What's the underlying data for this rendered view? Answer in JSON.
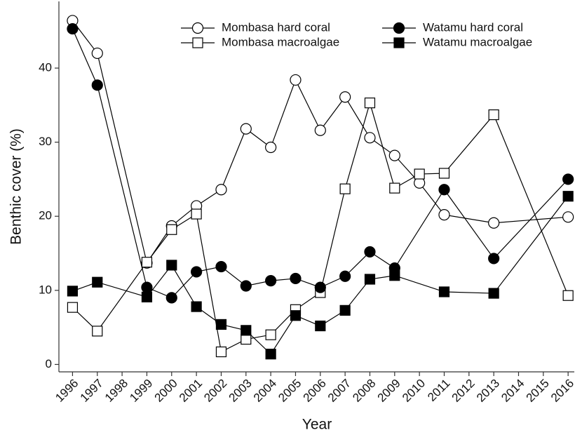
{
  "chart_data": {
    "type": "line",
    "xlabel": "Year",
    "ylabel": "Benthic cover (%)",
    "xlim": [
      1995.45,
      2016.25
    ],
    "ylim": [
      -1,
      49
    ],
    "xticks": [
      1996,
      1997,
      1998,
      1999,
      2000,
      2001,
      2002,
      2003,
      2004,
      2005,
      2006,
      2007,
      2008,
      2009,
      2010,
      2011,
      2012,
      2013,
      2014,
      2015,
      2016
    ],
    "yticks": [
      0,
      10,
      20,
      30,
      40
    ],
    "legend": "upper right",
    "series": [
      {
        "name": "Mombasa hard coral",
        "color": "#000000",
        "marker": "circle",
        "filled": false,
        "x": [
          1996,
          1997,
          1999,
          2000,
          2001,
          2002,
          2003,
          2004,
          2005,
          2006,
          2007,
          2008,
          2009,
          2010,
          2011,
          2013,
          2016
        ],
        "values": [
          46.4,
          42.0,
          13.7,
          18.7,
          21.4,
          23.6,
          31.8,
          29.3,
          38.4,
          31.6,
          36.1,
          30.6,
          28.2,
          24.5,
          20.2,
          19.1,
          19.9
        ]
      },
      {
        "name": "Mombasa macroalgae",
        "color": "#000000",
        "marker": "square",
        "filled": false,
        "x": [
          1996,
          1997,
          1999,
          2000,
          2001,
          2002,
          2003,
          2004,
          2005,
          2006,
          2007,
          2008,
          2009,
          2010,
          2011,
          2013,
          2016
        ],
        "values": [
          7.7,
          4.5,
          13.8,
          18.2,
          20.3,
          1.7,
          3.4,
          4.0,
          7.4,
          9.7,
          23.7,
          35.3,
          23.8,
          25.7,
          25.8,
          33.7,
          9.3
        ]
      },
      {
        "name": "Watamu hard coral",
        "color": "#000000",
        "marker": "circle",
        "filled": true,
        "x": [
          1996,
          1997,
          1999,
          2000,
          2001,
          2002,
          2003,
          2004,
          2005,
          2006,
          2007,
          2008,
          2009,
          2011,
          2013,
          2016
        ],
        "values": [
          45.3,
          37.7,
          10.4,
          9.0,
          12.5,
          13.2,
          10.6,
          11.3,
          11.6,
          10.4,
          11.9,
          15.2,
          13.0,
          23.6,
          14.3,
          25.0
        ]
      },
      {
        "name": "Watamu macroalgae",
        "color": "#000000",
        "marker": "square",
        "filled": true,
        "x": [
          1996,
          1997,
          1999,
          2000,
          2001,
          2002,
          2003,
          2004,
          2005,
          2006,
          2007,
          2008,
          2009,
          2011,
          2013,
          2016
        ],
        "values": [
          9.9,
          11.1,
          9.1,
          13.4,
          7.8,
          5.4,
          4.6,
          1.4,
          6.6,
          5.2,
          7.3,
          11.5,
          12.0,
          9.8,
          9.6,
          22.7
        ]
      }
    ]
  }
}
